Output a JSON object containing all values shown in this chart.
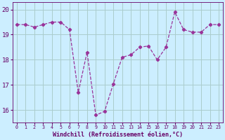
{
  "x": [
    0,
    1,
    2,
    3,
    4,
    5,
    6,
    7,
    8,
    9,
    10,
    11,
    12,
    13,
    14,
    15,
    16,
    17,
    18,
    19,
    20,
    21,
    22,
    23
  ],
  "y": [
    19.4,
    19.4,
    19.3,
    19.4,
    19.5,
    19.5,
    19.2,
    16.7,
    18.3,
    15.8,
    15.95,
    17.05,
    18.1,
    18.2,
    18.5,
    18.55,
    18.0,
    18.5,
    19.9,
    19.2,
    19.1,
    19.1,
    19.4,
    19.4
  ],
  "line_color": "#993399",
  "marker": "D",
  "marker_size": 2.2,
  "bg_color": "#cceeff",
  "grid_color": "#aacccc",
  "xlabel": "Windchill (Refroidissement éolien,°C)",
  "xlabel_color": "#660066",
  "tick_color": "#660066",
  "ylim": [
    15.5,
    20.3
  ],
  "xlim": [
    -0.5,
    23.5
  ],
  "yticks": [
    16,
    17,
    18,
    19,
    20
  ],
  "xticks": [
    0,
    1,
    2,
    3,
    4,
    5,
    6,
    7,
    8,
    9,
    10,
    11,
    12,
    13,
    14,
    15,
    16,
    17,
    18,
    19,
    20,
    21,
    22,
    23
  ]
}
